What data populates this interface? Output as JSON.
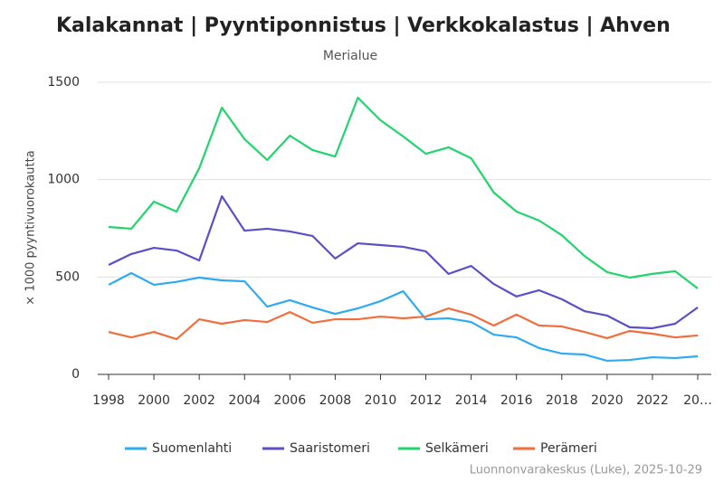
{
  "chart_data": {
    "type": "line",
    "title": "Kalakannat | Pyyntiponnistus | Verkkokalastus | Ahven",
    "subtitle": "Merialue",
    "y_label": "× 1000 pyyntivuorokautta",
    "credit": "Luonnonvarakeskus (Luke), 2025-10-29",
    "x": [
      1998,
      1999,
      2000,
      2001,
      2002,
      2003,
      2004,
      2005,
      2006,
      2007,
      2008,
      2009,
      2010,
      2011,
      2012,
      2013,
      2014,
      2015,
      2016,
      2017,
      2018,
      2019,
      2020,
      2021,
      2022,
      2023,
      2024
    ],
    "xlim": [
      1998,
      2024
    ],
    "xticks": [
      1998,
      2000,
      2002,
      2004,
      2006,
      2008,
      2010,
      2012,
      2014,
      2016,
      2018,
      2020,
      2022,
      {
        "value": 2024,
        "label": "20…"
      }
    ],
    "ylim": [
      0,
      1500
    ],
    "yticks": [
      0,
      500,
      1000,
      1500
    ],
    "grid": true,
    "legend": "bottom",
    "series": [
      {
        "name": "Suomenlahti",
        "color": "#2eaaf0",
        "values": [
          460,
          520,
          460,
          475,
          497,
          483,
          478,
          348,
          381,
          344,
          311,
          339,
          376,
          427,
          283,
          288,
          269,
          204,
          190,
          135,
          107,
          102,
          70,
          74,
          88,
          84,
          93
        ]
      },
      {
        "name": "Saaristomeri",
        "color": "#5b4fc7",
        "values": [
          562,
          618,
          650,
          636,
          585,
          915,
          738,
          748,
          734,
          711,
          595,
          673,
          664,
          655,
          632,
          516,
          557,
          464,
          400,
          432,
          386,
          325,
          302,
          242,
          237,
          260,
          344
        ]
      },
      {
        "name": "Selkämeri",
        "color": "#22d46e",
        "values": [
          757,
          748,
          887,
          836,
          1059,
          1370,
          1208,
          1101,
          1226,
          1152,
          1119,
          1421,
          1305,
          1222,
          1133,
          1166,
          1110,
          934,
          836,
          790,
          715,
          608,
          525,
          497,
          516,
          530,
          441
        ]
      },
      {
        "name": "Perämeri",
        "color": "#f06e3c",
        "values": [
          218,
          190,
          218,
          181,
          283,
          260,
          279,
          269,
          320,
          265,
          283,
          283,
          297,
          288,
          297,
          339,
          307,
          251,
          307,
          251,
          246,
          218,
          186,
          223,
          209,
          190,
          200
        ]
      }
    ]
  }
}
